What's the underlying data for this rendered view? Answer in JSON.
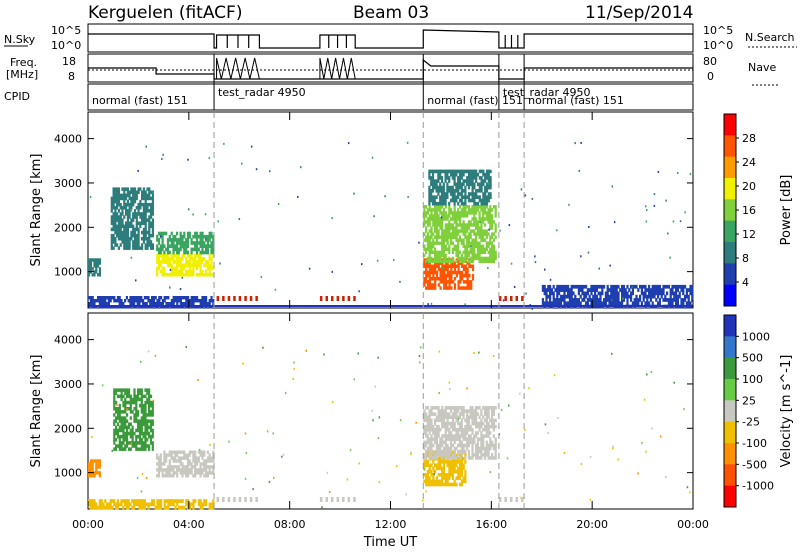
{
  "header": {
    "station": "Kerguelen  (fitACF)",
    "beam": "Beam 03",
    "date": "11/Sep/2014"
  },
  "summary_panels": {
    "nsky_label": "N.Sky",
    "freq_label_1": "Freq.",
    "freq_label_2": "[MHz]",
    "cpid_label": "CPID",
    "nsearch_label": "N.Search",
    "nave_label": "Nave",
    "left_ticks_top": [
      "10^5",
      "10^0"
    ],
    "left_ticks_freq": [
      "18",
      "8"
    ],
    "right_ticks_top": [
      "10^5",
      "10^0"
    ],
    "right_ticks_nave": [
      "80",
      "0"
    ],
    "cpid_segments": [
      {
        "label": "normal (fast) 151",
        "start": 0.0
      },
      {
        "label": "test_radar 4950",
        "start": 5.0
      },
      {
        "label": "normal (fast) 151",
        "start": 13.3
      },
      {
        "label": "test_radar 4950",
        "start": 16.3
      },
      {
        "label": "normal (fast) 151",
        "start": 17.3
      }
    ],
    "dashed_times": [
      5.0,
      13.3,
      16.3,
      17.3
    ]
  },
  "colors": {
    "power_scale": [
      "#0000ff",
      "#1f3fb0",
      "#2e7d7d",
      "#3aa560",
      "#7fd03a",
      "#f0f000",
      "#ff9a00",
      "#ff5500",
      "#ff0000"
    ],
    "velocity_scale": [
      "#2233bb",
      "#3377cc",
      "#3b9a3b",
      "#66cc44",
      "#c8c8c0",
      "#f0c000",
      "#ff9000",
      "#ff5000",
      "#ff0000"
    ]
  },
  "chart_data": [
    {
      "type": "heatmap",
      "name": "power",
      "xlabel": "",
      "ylabel": "Slant Range [km]",
      "xlim": [
        0,
        24
      ],
      "ylim": [
        180,
        4600
      ],
      "yticks": [
        1000,
        2000,
        3000,
        4000
      ],
      "xticks": [
        0,
        4,
        8,
        12,
        16,
        20,
        24
      ],
      "colorbar": {
        "label": "Power [dB]",
        "range": [
          0,
          32
        ],
        "tick_labels": [
          "4",
          "8",
          "12",
          "16",
          "20",
          "24",
          "28"
        ]
      },
      "regions": [
        {
          "t0": 0.0,
          "t1": 0.5,
          "r0": 900,
          "r1": 1300,
          "value": 9
        },
        {
          "t0": 0.9,
          "t1": 2.6,
          "r0": 1500,
          "r1": 2900,
          "value": 9
        },
        {
          "t0": 2.7,
          "t1": 5.0,
          "r0": 900,
          "r1": 1400,
          "value": 20
        },
        {
          "t0": 2.7,
          "t1": 5.0,
          "r0": 1400,
          "r1": 1900,
          "value": 12
        },
        {
          "t0": 13.3,
          "t1": 15.3,
          "r0": 600,
          "r1": 1300,
          "value": 27
        },
        {
          "t0": 13.3,
          "t1": 16.2,
          "r0": 1200,
          "r1": 2500,
          "value": 16
        },
        {
          "t0": 13.5,
          "t1": 16.0,
          "r0": 2500,
          "r1": 3300,
          "value": 9
        },
        {
          "t0": 0.0,
          "t1": 5.0,
          "r0": 180,
          "r1": 450,
          "value": 6
        },
        {
          "t0": 18.0,
          "t1": 24.0,
          "r0": 180,
          "r1": 700,
          "value": 6
        }
      ]
    },
    {
      "type": "heatmap",
      "name": "velocity",
      "xlabel": "Time UT",
      "ylabel": "Slant Range [km]",
      "xlim": [
        0,
        24
      ],
      "ylim": [
        180,
        4600
      ],
      "yticks": [
        1000,
        2000,
        3000,
        4000
      ],
      "xticks": [
        0,
        4,
        8,
        12,
        16,
        20,
        24
      ],
      "xtick_labels": [
        "00:00",
        "04:00",
        "08:00",
        "12:00",
        "16:00",
        "20:00",
        "00:00"
      ],
      "colorbar": {
        "label": "Velocity [m s^-1]",
        "tick_labels": [
          "1000",
          "500",
          "100",
          "25",
          "-25",
          "-100",
          "-500",
          "-1000"
        ]
      },
      "regions": [
        {
          "t0": 0.0,
          "t1": 0.5,
          "r0": 900,
          "r1": 1300,
          "value": -400
        },
        {
          "t0": 1.0,
          "t1": 2.6,
          "r0": 1500,
          "r1": 2900,
          "value": 150
        },
        {
          "t0": 2.7,
          "t1": 5.0,
          "r0": 900,
          "r1": 1500,
          "value": 0
        },
        {
          "t0": 13.3,
          "t1": 15.0,
          "r0": 700,
          "r1": 1500,
          "value": -80
        },
        {
          "t0": 13.3,
          "t1": 16.2,
          "r0": 1300,
          "r1": 2500,
          "value": 0
        },
        {
          "t0": 0.0,
          "t1": 5.0,
          "r0": 180,
          "r1": 400,
          "value": -60
        }
      ]
    }
  ]
}
